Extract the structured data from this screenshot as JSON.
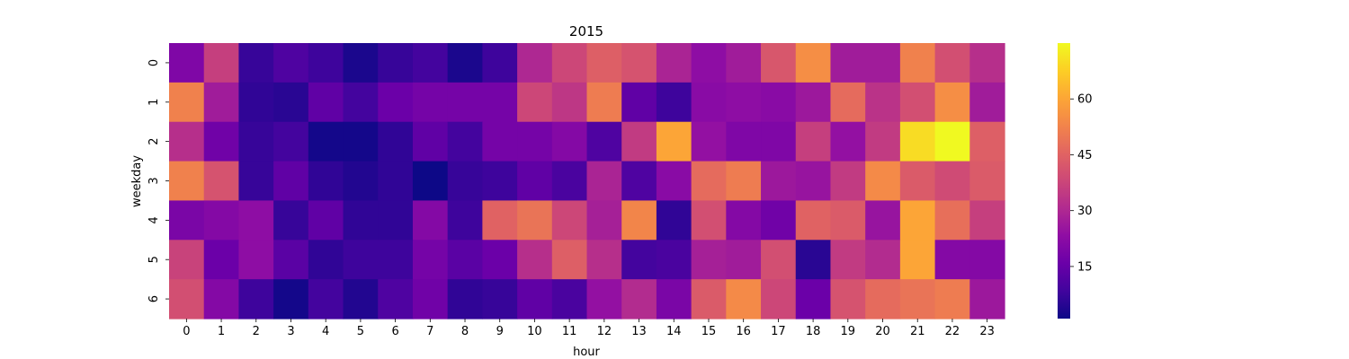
{
  "chart_data": {
    "type": "heatmap",
    "title": "2015",
    "xlabel": "hour",
    "ylabel": "weekday",
    "x": [
      "0",
      "1",
      "2",
      "3",
      "4",
      "5",
      "6",
      "7",
      "8",
      "9",
      "10",
      "11",
      "12",
      "13",
      "14",
      "15",
      "16",
      "17",
      "18",
      "19",
      "20",
      "21",
      "22",
      "23"
    ],
    "y": [
      "0",
      "1",
      "2",
      "3",
      "4",
      "5",
      "6"
    ],
    "values": [
      [
        20,
        36,
        7,
        11,
        8,
        3,
        7,
        9,
        3,
        8,
        30,
        38,
        44,
        41,
        29,
        23,
        27,
        42,
        55,
        27,
        27,
        52,
        40,
        32
      ],
      [
        52,
        27,
        6,
        5,
        14,
        9,
        16,
        18,
        18,
        18,
        38,
        34,
        51,
        14,
        8,
        22,
        23,
        22,
        26,
        47,
        33,
        40,
        55,
        27
      ],
      [
        32,
        17,
        7,
        9,
        2,
        2,
        6,
        14,
        9,
        18,
        18,
        21,
        11,
        35,
        60,
        24,
        20,
        20,
        36,
        24,
        35,
        70,
        75,
        44
      ],
      [
        52,
        41,
        7,
        14,
        6,
        4,
        6,
        1,
        7,
        8,
        14,
        10,
        29,
        11,
        22,
        47,
        51,
        26,
        25,
        35,
        54,
        43,
        39,
        43
      ],
      [
        19,
        21,
        23,
        7,
        14,
        6,
        6,
        21,
        8,
        45,
        49,
        38,
        28,
        53,
        6,
        40,
        21,
        17,
        45,
        43,
        25,
        60,
        48,
        36
      ],
      [
        37,
        16,
        23,
        13,
        6,
        8,
        8,
        18,
        13,
        16,
        32,
        44,
        32,
        9,
        10,
        28,
        27,
        40,
        5,
        35,
        31,
        60,
        21,
        21
      ],
      [
        40,
        21,
        8,
        2,
        9,
        4,
        11,
        17,
        6,
        7,
        14,
        10,
        24,
        31,
        19,
        43,
        54,
        38,
        16,
        41,
        47,
        49,
        51,
        26
      ]
    ],
    "vmin": 1,
    "vmax": 75,
    "colormap": "plasma",
    "colorbar_ticks": [
      15,
      30,
      45,
      60
    ]
  }
}
